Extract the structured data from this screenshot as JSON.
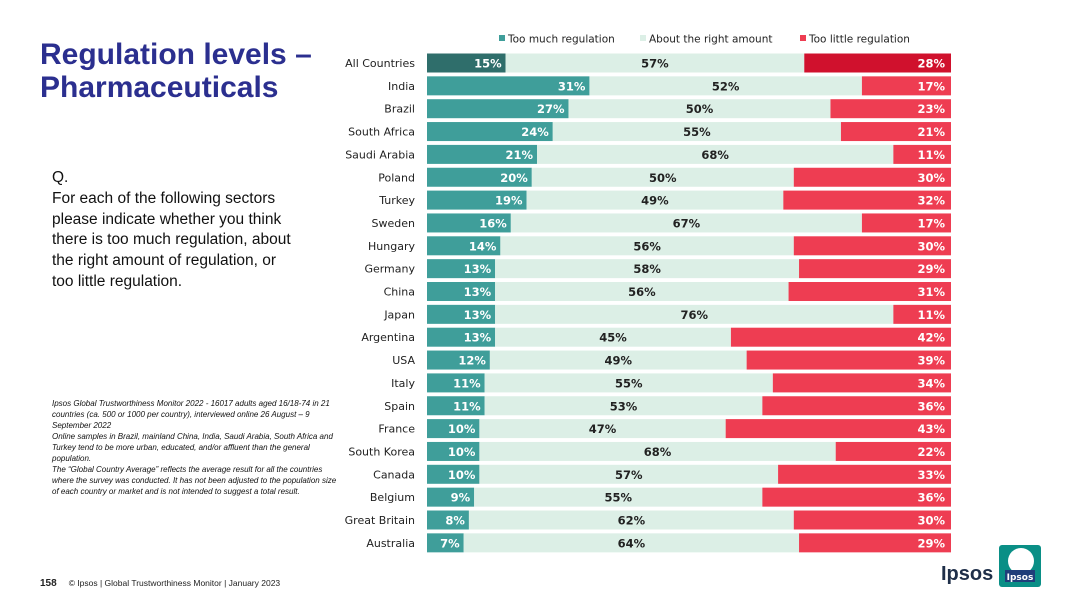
{
  "title": {
    "line1": "Regulation levels –",
    "line2": "Pharmaceuticals"
  },
  "question": {
    "q": "Q.",
    "text": "For each of the following sectors please indicate whether you think there is too much regulation, about the right amount of regulation, or too little regulation."
  },
  "notes": [
    "Ipsos Global Trustworthiness Monitor 2022 - 16017 adults aged 16/18-74 in 21 countries (ca. 500 or 1000 per country), interviewed online 26 August – 9 September 2022",
    "Online samples in Brazil, mainland China, India, Saudi Arabia, South Africa and Turkey tend to be more urban, educated, and/or affluent than the general population.",
    "The “Global Country Average” reflects the average result for all the countries where the survey was conducted. It has not been adjusted to the population size of each country or market and is not intended to suggest a total result."
  ],
  "footer": {
    "page": "158",
    "text": "© Ipsos | Global Trustworthiness Monitor | January 2023"
  },
  "logo": {
    "wordmark": "Ipsos",
    "badge": "Ipsos"
  },
  "colors": {
    "too_much": "#3f9e9a",
    "too_much_highlight": "#2f6e6b",
    "right_amount": "#dcefe6",
    "too_little": "#ee3d52",
    "too_little_highlight": "#d0112d",
    "title": "#2b2f8f"
  },
  "chart_data": {
    "type": "bar",
    "orientation": "horizontal-stacked-100",
    "categories": [
      "All Countries",
      "India",
      "Brazil",
      "South Africa",
      "Saudi Arabia",
      "Poland",
      "Turkey",
      "Sweden",
      "Hungary",
      "Germany",
      "China",
      "Japan",
      "Argentina",
      "USA",
      "Italy",
      "Spain",
      "France",
      "South Korea",
      "Canada",
      "Belgium",
      "Great Britain",
      "Australia"
    ],
    "series": [
      {
        "name": "Too much regulation",
        "values": [
          15,
          31,
          27,
          24,
          21,
          20,
          19,
          16,
          14,
          13,
          13,
          13,
          13,
          12,
          11,
          11,
          10,
          10,
          10,
          9,
          8,
          7
        ]
      },
      {
        "name": "About the right amount",
        "values": [
          57,
          52,
          50,
          55,
          68,
          50,
          49,
          67,
          56,
          58,
          56,
          76,
          45,
          49,
          55,
          53,
          47,
          68,
          57,
          55,
          62,
          64
        ]
      },
      {
        "name": "Too little regulation",
        "values": [
          28,
          17,
          23,
          21,
          11,
          30,
          32,
          17,
          30,
          29,
          31,
          11,
          42,
          39,
          34,
          36,
          43,
          22,
          33,
          36,
          30,
          29
        ]
      }
    ],
    "value_suffix": "%",
    "legend_position": "top",
    "xlim": [
      0,
      100
    ]
  }
}
